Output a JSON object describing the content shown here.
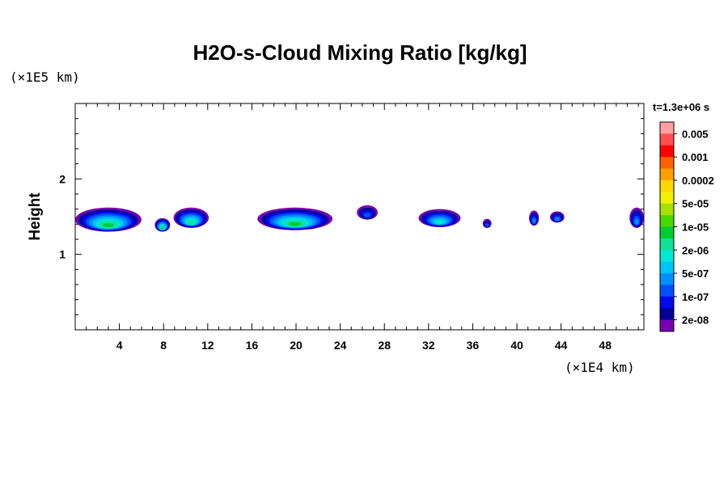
{
  "chart_data": {
    "type": "heatmap",
    "title": "H2O-s-Cloud Mixing Ratio [kg/kg]",
    "xlabel": "",
    "ylabel": "Height",
    "x_scale_label": "(×1E4 km)",
    "y_scale_label": "(×1E5 km)",
    "xlim": [
      0,
      51.5
    ],
    "ylim": [
      0,
      3
    ],
    "x_ticks": [
      "4",
      "8",
      "12",
      "16",
      "20",
      "24",
      "28",
      "32",
      "36",
      "40",
      "44",
      "48"
    ],
    "x_tick_values": [
      4,
      8,
      12,
      16,
      20,
      24,
      28,
      32,
      36,
      40,
      44,
      48
    ],
    "y_ticks": [
      "1",
      "2"
    ],
    "y_tick_values": [
      1,
      2
    ],
    "time_label": "t=1.3e+06 s",
    "colorbar": {
      "labels": [
        "0.005",
        "0.001",
        "0.0002",
        "5e-05",
        "1e-05",
        "2e-06",
        "5e-07",
        "1e-07",
        "2e-08"
      ],
      "colors": [
        "#ffa0a0",
        "#ff5050",
        "#ff0000",
        "#ff6000",
        "#ffa000",
        "#ffd700",
        "#f0f000",
        "#a8e000",
        "#48d800",
        "#00cc30",
        "#10e098",
        "#00e8d0",
        "#00c4f8",
        "#0090ff",
        "#0050ff",
        "#0008f0",
        "#000098",
        "#7800b4"
      ]
    },
    "cloud_regions": [
      {
        "name": "cloud-1",
        "x": [
          0,
          6
        ],
        "y": [
          1.3,
          1.62
        ],
        "peak_level": 9
      },
      {
        "name": "cloud-2",
        "x": [
          7.2,
          8.6
        ],
        "y": [
          1.3,
          1.48
        ],
        "peak_level": 9
      },
      {
        "name": "cloud-3",
        "x": [
          8.9,
          12.1
        ],
        "y": [
          1.35,
          1.62
        ],
        "peak_level": 10
      },
      {
        "name": "cloud-4",
        "x": [
          16.5,
          23.3
        ],
        "y": [
          1.32,
          1.62
        ],
        "peak_level": 9
      },
      {
        "name": "cloud-5",
        "x": [
          25.5,
          27.4
        ],
        "y": [
          1.46,
          1.65
        ],
        "peak_level": 14
      },
      {
        "name": "cloud-6",
        "x": [
          31.1,
          34.9
        ],
        "y": [
          1.36,
          1.6
        ],
        "peak_level": 11
      },
      {
        "name": "cloud-7",
        "x": [
          36.9,
          37.7
        ],
        "y": [
          1.35,
          1.47
        ],
        "peak_level": 14
      },
      {
        "name": "cloud-8",
        "x": [
          41.1,
          42
        ],
        "y": [
          1.38,
          1.58
        ],
        "peak_level": 13
      },
      {
        "name": "cloud-9",
        "x": [
          43,
          44.3
        ],
        "y": [
          1.42,
          1.57
        ],
        "peak_level": 13
      },
      {
        "name": "cloud-10",
        "x": [
          50.2,
          51.5
        ],
        "y": [
          1.35,
          1.62
        ],
        "peak_level": 13
      }
    ]
  }
}
